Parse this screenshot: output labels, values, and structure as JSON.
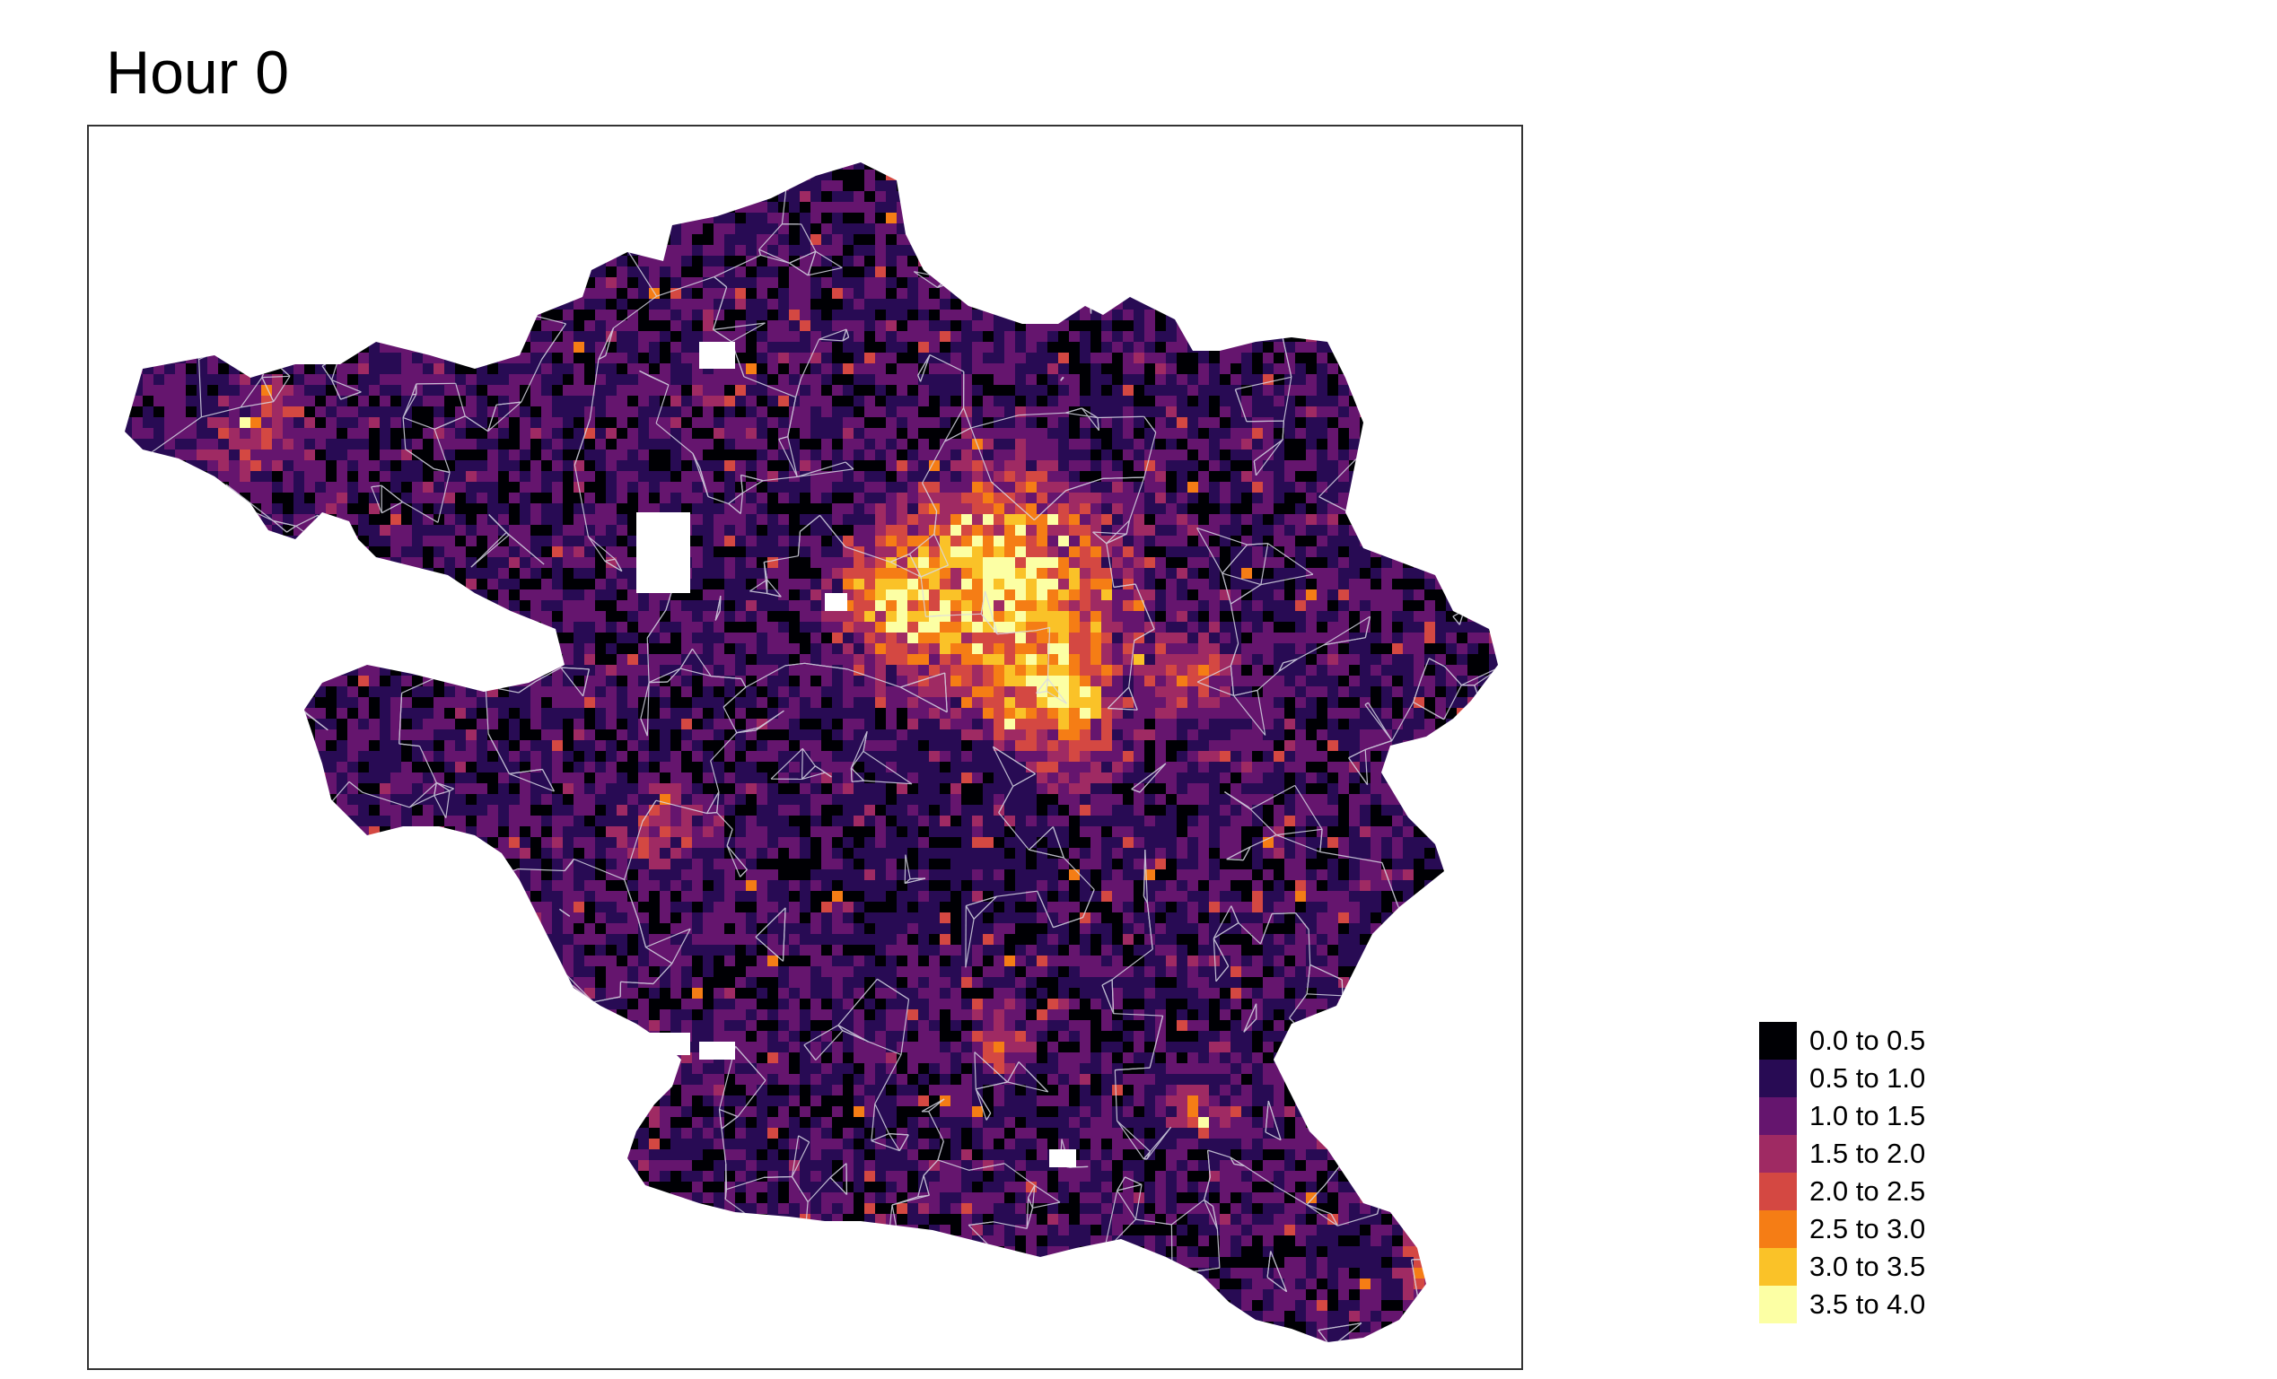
{
  "title": "Hour 0",
  "map": {
    "type": "choropleth-grid",
    "background": "#ffffff",
    "boundary_color": "#d9d9e6"
  },
  "legend": {
    "position": "bottom-right",
    "items": [
      {
        "label": "0.0 to 0.5",
        "color": "#000004"
      },
      {
        "label": "0.5 to 1.0",
        "color": "#280b54"
      },
      {
        "label": "1.0 to 1.5",
        "color": "#65156e"
      },
      {
        "label": "1.5 to 2.0",
        "color": "#9f2a63"
      },
      {
        "label": "2.0 to 2.5",
        "color": "#d44842"
      },
      {
        "label": "2.5 to 3.0",
        "color": "#f57d15"
      },
      {
        "label": "3.0 to 3.5",
        "color": "#fac228"
      },
      {
        "label": "3.5 to 4.0",
        "color": "#fcffa4"
      }
    ]
  }
}
